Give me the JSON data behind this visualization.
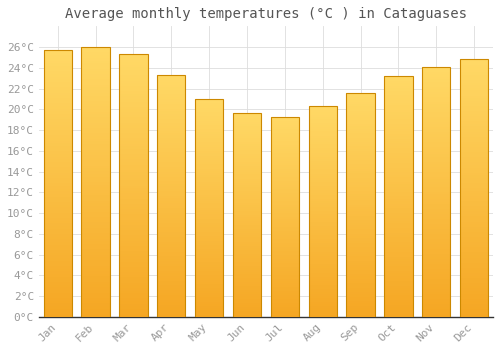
{
  "title": "Average monthly temperatures (°C ) in Cataguases",
  "months": [
    "Jan",
    "Feb",
    "Mar",
    "Apr",
    "May",
    "Jun",
    "Jul",
    "Aug",
    "Sep",
    "Oct",
    "Nov",
    "Dec"
  ],
  "values": [
    25.7,
    26.0,
    25.3,
    23.3,
    21.0,
    19.6,
    19.3,
    20.3,
    21.6,
    23.2,
    24.1,
    24.8
  ],
  "bar_color_bottom": "#F5A623",
  "bar_color_top": "#FFD966",
  "bar_edge_color": "#CC8800",
  "ylim": [
    0,
    28
  ],
  "yticks": [
    0,
    2,
    4,
    6,
    8,
    10,
    12,
    14,
    16,
    18,
    20,
    22,
    24,
    26
  ],
  "ytick_labels": [
    "0°C",
    "2°C",
    "4°C",
    "6°C",
    "8°C",
    "10°C",
    "12°C",
    "14°C",
    "16°C",
    "18°C",
    "20°C",
    "22°C",
    "24°C",
    "26°C"
  ],
  "bg_color": "#FFFFFF",
  "grid_color": "#DDDDDD",
  "title_fontsize": 10,
  "tick_fontsize": 8,
  "title_color": "#555555",
  "tick_color": "#999999",
  "bar_width": 0.75,
  "n_gradient_steps": 100
}
